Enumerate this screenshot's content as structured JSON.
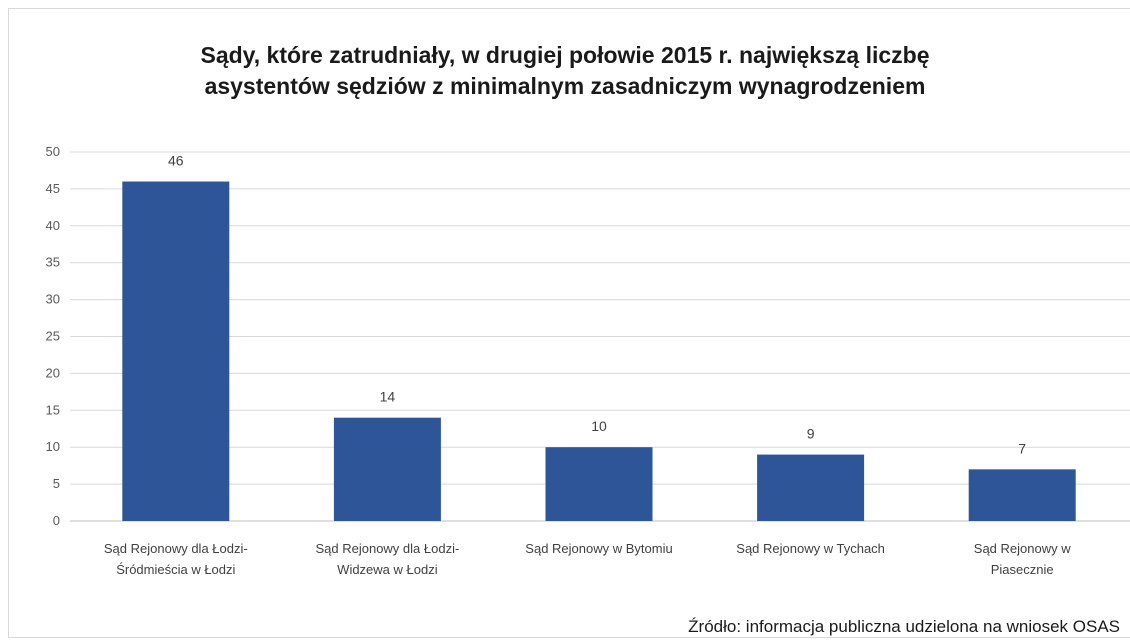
{
  "chart_data": {
    "type": "bar",
    "title": "Sądy, które zatrudniały, w drugiej połowie 2015 r. największą liczbę asystentów sędziów z minimalnym zasadniczym wynagrodzeniem",
    "title_lines": [
      "Sądy, które zatrudniały, w drugiej połowie 2015 r. największą liczbę",
      "asystentów sędziów z minimalnym zasadniczym wynagrodzeniem"
    ],
    "categories": [
      [
        "Sąd Rejonowy dla Łodzi-",
        "Śródmieścia w Łodzi"
      ],
      [
        "Sąd Rejonowy dla Łodzi-",
        "Widzewa w Łodzi"
      ],
      [
        "Sąd Rejonowy w Bytomiu"
      ],
      [
        "Sąd Rejonowy w Tychach"
      ],
      [
        "Sąd Rejonowy w",
        "Piasecznie"
      ]
    ],
    "values": [
      46,
      14,
      10,
      9,
      7
    ],
    "data_labels": [
      "46",
      "14",
      "10",
      "9",
      "7"
    ],
    "xlabel": "",
    "ylabel": "",
    "ylim": [
      0,
      50
    ],
    "yticks": [
      0,
      5,
      10,
      15,
      20,
      25,
      30,
      35,
      40,
      45,
      50
    ],
    "grid": true,
    "legend": "none",
    "bar_color": "#2e5597",
    "grid_color": "#d9d9d9"
  },
  "source": "Źródło: informacja publiczna udzielona na wniosek OSAS"
}
